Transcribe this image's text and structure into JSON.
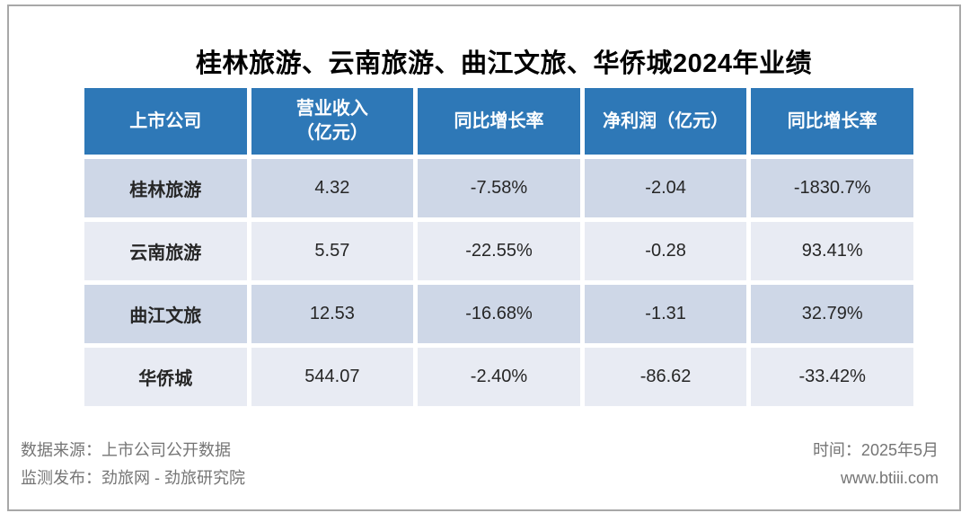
{
  "title": "桂林旅游、云南旅游、曲江文旅、华侨城2024年业绩",
  "table": {
    "headers": {
      "company": "上市公司",
      "revenue": "营业收入\n（亿元）",
      "revenue_yoy": "同比增长率",
      "profit": "净利润（亿元）",
      "profit_yoy": "同比增长率"
    },
    "rows": [
      {
        "company": "桂林旅游",
        "revenue": "4.32",
        "revenue_yoy": "-7.58%",
        "profit": "-2.04",
        "profit_yoy": "-1830.7%"
      },
      {
        "company": "云南旅游",
        "revenue": "5.57",
        "revenue_yoy": "-22.55%",
        "profit": "-0.28",
        "profit_yoy": "93.41%"
      },
      {
        "company": "曲江文旅",
        "revenue": "12.53",
        "revenue_yoy": "-16.68%",
        "profit": "-1.31",
        "profit_yoy": "32.79%"
      },
      {
        "company": "华侨城",
        "revenue": "544.07",
        "revenue_yoy": "-2.40%",
        "profit": "-86.62",
        "profit_yoy": "-33.42%"
      }
    ]
  },
  "footer": {
    "source": "数据来源：上市公司公开数据",
    "publisher": "监测发布：劲旅网 - 劲旅研究院",
    "time": "时间：2025年5月",
    "website": "www.btiii.com"
  },
  "colors": {
    "header_bg": "#2E78B7",
    "header_text": "#FFFFFF",
    "row_dark": "#CED7E7",
    "row_light": "#E8EBF3",
    "footer_text": "#757575",
    "border_gray": "#A8A8A8",
    "title_color": "#000000"
  },
  "chart_data": {
    "type": "table",
    "title": "桂林旅游、云南旅游、曲江文旅、华侨城2024年业绩",
    "columns": [
      "上市公司",
      "营业收入（亿元）",
      "同比增长率",
      "净利润（亿元）",
      "同比增长率"
    ],
    "rows": [
      [
        "桂林旅游",
        4.32,
        "-7.58%",
        -2.04,
        "-1830.7%"
      ],
      [
        "云南旅游",
        5.57,
        "-22.55%",
        -0.28,
        "93.41%"
      ],
      [
        "曲江文旅",
        12.53,
        "-16.68%",
        -1.31,
        "32.79%"
      ],
      [
        "华侨城",
        544.07,
        "-2.40%",
        -86.62,
        "-33.42%"
      ]
    ],
    "source": "上市公司公开数据",
    "publisher": "劲旅网 - 劲旅研究院",
    "date": "2025年5月"
  }
}
